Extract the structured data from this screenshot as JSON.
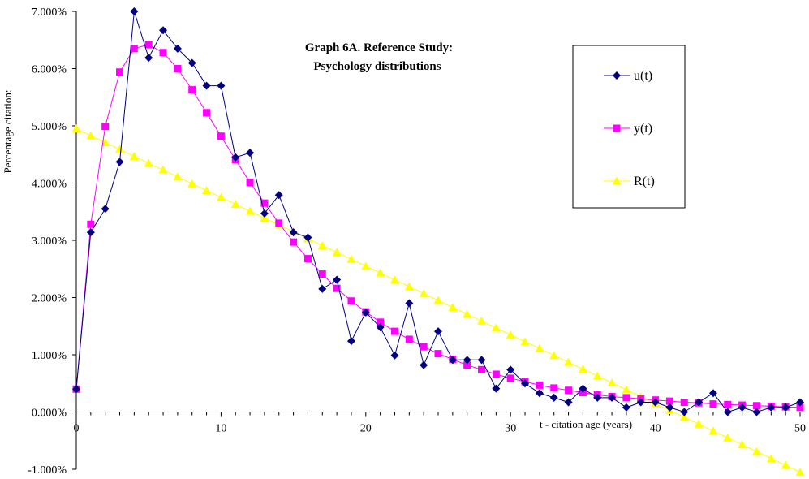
{
  "chart_data": {
    "type": "line",
    "title_line1": "Graph 6A.  Reference Study:",
    "title_line2": "Psychology distributions",
    "xlabel": "t - citation age (years)",
    "ylabel": "Percentage citation:",
    "xlim": [
      0,
      50
    ],
    "ylim": [
      -1,
      7
    ],
    "x_ticks": [
      0,
      10,
      20,
      30,
      40,
      50
    ],
    "y_ticks": [
      -1,
      0,
      1,
      2,
      3,
      4,
      5,
      6,
      7
    ],
    "y_tick_labels": [
      "-1.000%",
      "0.000%",
      "1.000%",
      "2.000%",
      "3.000%",
      "4.000%",
      "5.000%",
      "6.000%",
      "7.000%"
    ],
    "x": [
      0,
      1,
      2,
      3,
      4,
      5,
      6,
      7,
      8,
      9,
      10,
      11,
      12,
      13,
      14,
      15,
      16,
      17,
      18,
      19,
      20,
      21,
      22,
      23,
      24,
      25,
      26,
      27,
      28,
      29,
      30,
      31,
      32,
      33,
      34,
      35,
      36,
      37,
      38,
      39,
      40,
      41,
      42,
      43,
      44,
      45,
      46,
      47,
      48,
      49,
      50
    ],
    "series": [
      {
        "name": "u(t)",
        "color": "#000080",
        "marker": "diamond",
        "values": [
          0.4,
          3.14,
          3.55,
          4.37,
          7.0,
          6.19,
          6.67,
          6.35,
          6.1,
          5.7,
          5.7,
          4.45,
          4.53,
          3.47,
          3.79,
          3.14,
          3.05,
          2.15,
          2.31,
          1.24,
          1.74,
          1.48,
          0.99,
          1.9,
          0.82,
          1.41,
          0.91,
          0.91,
          0.91,
          0.41,
          0.74,
          0.5,
          0.33,
          0.25,
          0.17,
          0.41,
          0.25,
          0.25,
          0.08,
          0.17,
          0.17,
          0.08,
          0.0,
          0.17,
          0.33,
          0.0,
          0.08,
          0.0,
          0.08,
          0.08,
          0.17
        ]
      },
      {
        "name": "y(t)",
        "color": "#ff00ff",
        "marker": "square",
        "values": [
          0.4,
          3.28,
          4.99,
          5.94,
          6.35,
          6.42,
          6.28,
          6.0,
          5.63,
          5.23,
          4.82,
          4.41,
          4.01,
          3.65,
          3.3,
          2.97,
          2.68,
          2.41,
          2.16,
          1.94,
          1.75,
          1.57,
          1.41,
          1.27,
          1.14,
          1.02,
          0.92,
          0.82,
          0.74,
          0.66,
          0.59,
          0.53,
          0.47,
          0.42,
          0.38,
          0.34,
          0.3,
          0.27,
          0.25,
          0.23,
          0.21,
          0.19,
          0.17,
          0.16,
          0.14,
          0.13,
          0.12,
          0.11,
          0.1,
          0.09,
          0.08
        ]
      },
      {
        "name": "R(t)",
        "color": "#ffff00",
        "marker": "triangle",
        "values": [
          4.95,
          4.83,
          4.71,
          4.59,
          4.47,
          4.35,
          4.23,
          4.11,
          3.99,
          3.87,
          3.75,
          3.63,
          3.51,
          3.39,
          3.27,
          3.15,
          3.03,
          2.91,
          2.79,
          2.67,
          2.55,
          2.43,
          2.31,
          2.19,
          2.07,
          1.95,
          1.83,
          1.71,
          1.59,
          1.47,
          1.35,
          1.23,
          1.11,
          0.99,
          0.87,
          0.75,
          0.63,
          0.51,
          0.39,
          0.27,
          0.15,
          0.03,
          -0.09,
          -0.21,
          -0.33,
          -0.45,
          -0.57,
          -0.69,
          -0.81,
          -0.93,
          -1.05
        ]
      }
    ],
    "legend_position": "top-right"
  }
}
